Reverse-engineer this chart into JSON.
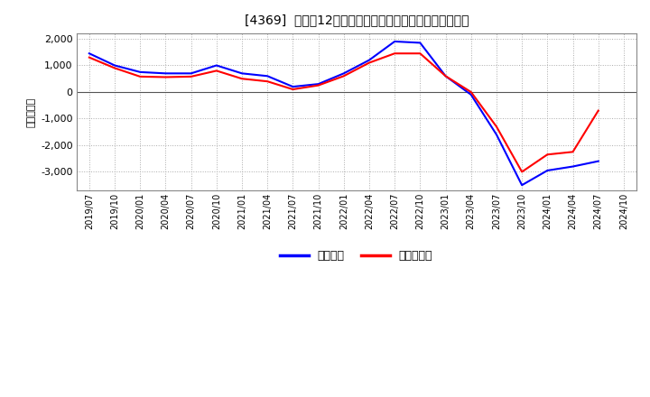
{
  "title": "[4369]  利益の12か月移動合計の対前年同期増減額の推移",
  "ylabel": "（百万円）",
  "legend_labels": [
    "経常利益",
    "当期純利益"
  ],
  "line_colors": [
    "#0000ff",
    "#ff0000"
  ],
  "background_color": "#ffffff",
  "plot_bg_color": "#ffffff",
  "grid_color": "#aaaaaa",
  "ylim": [
    -3700,
    2200
  ],
  "yticks": [
    -3000,
    -2000,
    -1000,
    0,
    1000,
    2000
  ],
  "x_labels": [
    "2019/07",
    "2019/10",
    "2020/01",
    "2020/04",
    "2020/07",
    "2020/10",
    "2021/01",
    "2021/04",
    "2021/07",
    "2021/10",
    "2022/01",
    "2022/04",
    "2022/07",
    "2022/10",
    "2023/01",
    "2023/04",
    "2023/07",
    "2023/10",
    "2024/01",
    "2024/04",
    "2024/07",
    "2024/10"
  ],
  "operating_profit": [
    1450,
    1000,
    750,
    700,
    700,
    1000,
    700,
    600,
    200,
    300,
    700,
    1200,
    1900,
    1850,
    600,
    -100,
    -1600,
    -3500,
    -2950,
    -2800,
    -2600,
    null
  ],
  "net_profit": [
    1300,
    900,
    580,
    560,
    580,
    800,
    500,
    400,
    100,
    250,
    600,
    1100,
    1450,
    1450,
    600,
    0,
    -1300,
    -3000,
    -2350,
    -2250,
    -700,
    null
  ]
}
